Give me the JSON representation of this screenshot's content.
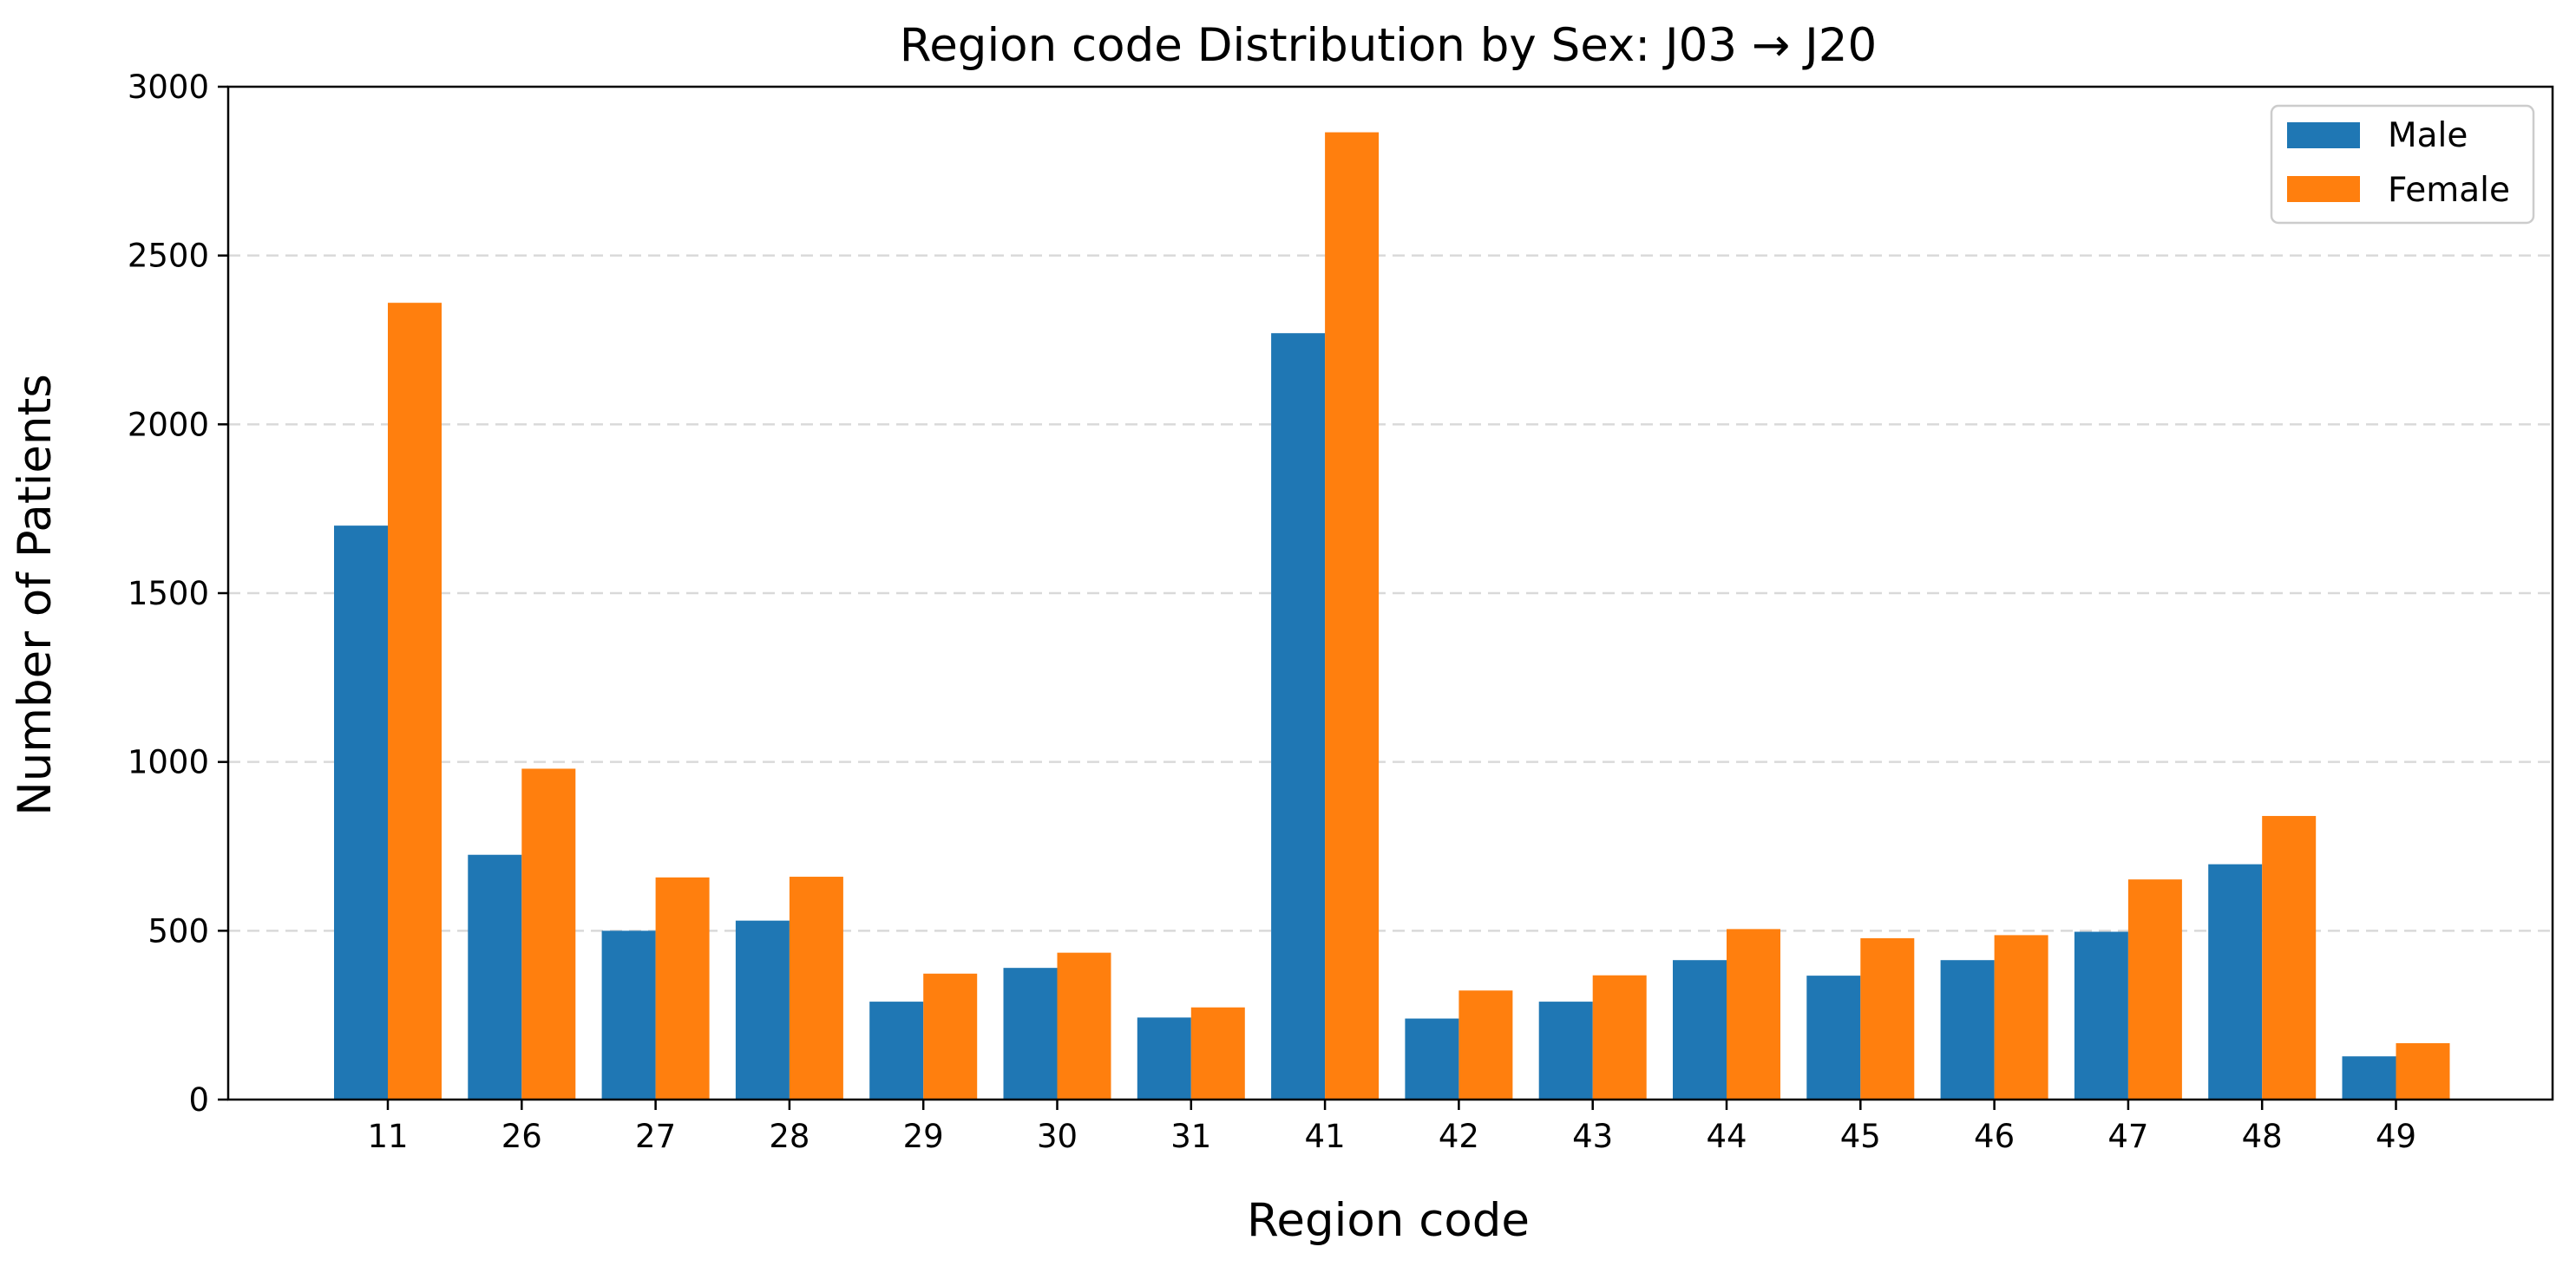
{
  "chart_data": {
    "type": "bar",
    "title": "Region code Distribution by Sex: J03 → J20",
    "xlabel": "Region code",
    "ylabel": "Number of Patients",
    "categories": [
      "11",
      "26",
      "27",
      "28",
      "29",
      "30",
      "31",
      "41",
      "42",
      "43",
      "44",
      "45",
      "46",
      "47",
      "48",
      "49"
    ],
    "series": [
      {
        "name": "Male",
        "color": "#1f77b4",
        "values": [
          1700,
          725,
          500,
          530,
          290,
          390,
          243,
          2270,
          240,
          290,
          413,
          367,
          413,
          497,
          697,
          128
        ]
      },
      {
        "name": "Female",
        "color": "#ff7f0e",
        "values": [
          2360,
          980,
          658,
          660,
          373,
          435,
          273,
          2865,
          323,
          368,
          505,
          478,
          487,
          652,
          840,
          167
        ]
      }
    ],
    "ylim": [
      0,
      3000
    ],
    "yticks": [
      0,
      500,
      1000,
      1500,
      2000,
      2500,
      3000
    ],
    "grid": "horizontal dashed",
    "legend_position": "top-right"
  }
}
